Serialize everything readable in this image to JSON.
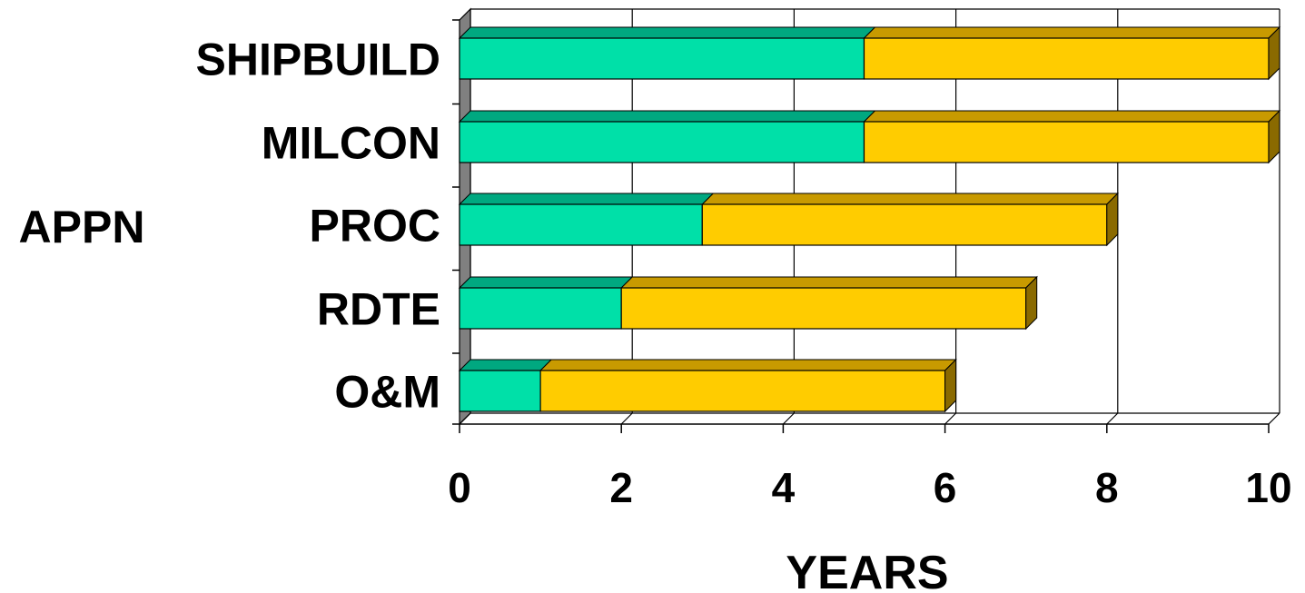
{
  "chart_data": {
    "type": "bar",
    "orientation": "horizontal",
    "stacked": true,
    "three_d": true,
    "title": "",
    "xlabel": "YEARS",
    "ylabel": "APPN",
    "categories": [
      "SHIPBUILD",
      "MILCON",
      "PROC",
      "RDTE",
      "O&M"
    ],
    "series": [
      {
        "values": [
          5,
          5,
          3,
          2,
          1
        ],
        "color": "#00E0A8",
        "top_color": "#00A880"
      },
      {
        "values": [
          5,
          5,
          5,
          5,
          5
        ],
        "color": "#FFCC00",
        "top_color": "#C89A00"
      }
    ],
    "xlim": [
      0,
      10
    ],
    "xticks": [
      "0",
      "2",
      "4",
      "6",
      "8",
      "10"
    ],
    "grid": "vertical",
    "legend": "none"
  }
}
